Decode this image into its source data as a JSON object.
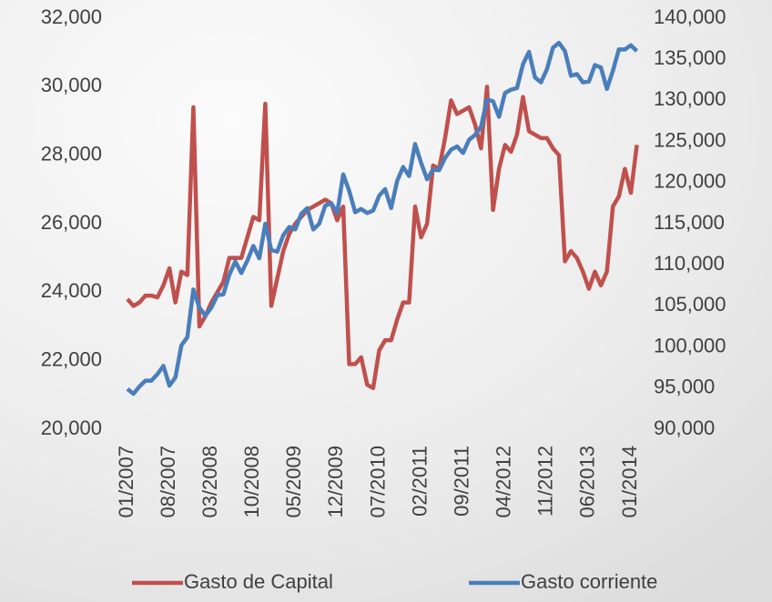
{
  "chart_data": {
    "type": "line",
    "categories": [
      "01/2007",
      null,
      null,
      null,
      null,
      null,
      null,
      "08/2007",
      null,
      null,
      null,
      null,
      null,
      null,
      "03/2008",
      null,
      null,
      null,
      null,
      null,
      null,
      "10/2008",
      null,
      null,
      null,
      null,
      null,
      null,
      "05/2009",
      null,
      null,
      null,
      null,
      null,
      null,
      "12/2009",
      null,
      null,
      null,
      null,
      null,
      null,
      "07/2010",
      null,
      null,
      null,
      null,
      null,
      null,
      "02/2011",
      null,
      null,
      null,
      null,
      null,
      null,
      "09/2011",
      null,
      null,
      null,
      null,
      null,
      null,
      "04/2012",
      null,
      null,
      null,
      null,
      null,
      null,
      "11/2012",
      null,
      null,
      null,
      null,
      null,
      null,
      "06/2013",
      null,
      null,
      null,
      null,
      null,
      null,
      "01/2014",
      null
    ],
    "series": [
      {
        "name": "Gasto de Capital",
        "color": "#c0504d",
        "values": [
          23800,
          23600,
          23700,
          23900,
          23900,
          23850,
          24200,
          24700,
          23700,
          24600,
          24500,
          29400,
          23000,
          23300,
          23700,
          24000,
          24300,
          25000,
          25000,
          25000,
          25600,
          26200,
          26100,
          29500,
          23600,
          24400,
          25200,
          25700,
          26000,
          26200,
          26400,
          26500,
          26600,
          26700,
          26600,
          26100,
          26500,
          21900,
          21900,
          22100,
          21300,
          21200,
          22300,
          22600,
          22600,
          23200,
          23700,
          23700,
          26500,
          25600,
          26000,
          27700,
          27600,
          28500,
          29600,
          29200,
          29300,
          29400,
          28900,
          28200,
          30000,
          26400,
          27600,
          28300,
          28100,
          28600,
          29700,
          28700,
          28600,
          28500,
          28500,
          28200,
          28000,
          24900,
          25200,
          25000,
          24600,
          24100,
          24600,
          24200,
          24600,
          26500,
          26800,
          27600,
          26900,
          28300
        ]
      },
      {
        "name": "Gasto corriente",
        "color": "#4a7ebb",
        "axis": "y2",
        "values": [
          94900,
          94300,
          95200,
          95900,
          95900,
          96700,
          97700,
          95300,
          96300,
          100200,
          101200,
          107000,
          104800,
          103800,
          104800,
          106300,
          106400,
          108800,
          110400,
          109000,
          110500,
          112300,
          110800,
          115000,
          111800,
          111600,
          113600,
          114600,
          114300,
          116200,
          116900,
          114300,
          115000,
          117200,
          117500,
          116300,
          121000,
          119000,
          116400,
          116800,
          116300,
          116600,
          118400,
          119200,
          116900,
          120200,
          121900,
          120800,
          124700,
          122400,
          120400,
          121600,
          121500,
          123000,
          124000,
          124400,
          123600,
          125200,
          125800,
          126800,
          130100,
          129900,
          128000,
          130900,
          131300,
          131500,
          134400,
          135900,
          132800,
          132200,
          133800,
          136400,
          137000,
          136000,
          133000,
          133200,
          132200,
          132300,
          134300,
          134000,
          131400,
          133600,
          136200,
          136200,
          136700,
          136000
        ]
      }
    ],
    "ylim": [
      20000,
      32000
    ],
    "yticks": [
      {
        "value": 20000,
        "label": "20,000"
      },
      {
        "value": 22000,
        "label": "22,000"
      },
      {
        "value": 24000,
        "label": "24,000"
      },
      {
        "value": 26000,
        "label": "26,000"
      },
      {
        "value": 28000,
        "label": "28,000"
      },
      {
        "value": 30000,
        "label": "30,000"
      },
      {
        "value": 32000,
        "label": "32,000"
      }
    ],
    "y2lim": [
      90000,
      140000
    ],
    "y2ticks": [
      {
        "value": 90000,
        "label": "90,000"
      },
      {
        "value": 95000,
        "label": "95,000"
      },
      {
        "value": 100000,
        "label": "100,000"
      },
      {
        "value": 105000,
        "label": "105,000"
      },
      {
        "value": 110000,
        "label": "110,000"
      },
      {
        "value": 115000,
        "label": "115,000"
      },
      {
        "value": 120000,
        "label": "120,000"
      },
      {
        "value": 125000,
        "label": "125,000"
      },
      {
        "value": 130000,
        "label": "130,000"
      },
      {
        "value": 135000,
        "label": "135,000"
      },
      {
        "value": 140000,
        "label": "140,000"
      }
    ],
    "legend": "bottom"
  }
}
